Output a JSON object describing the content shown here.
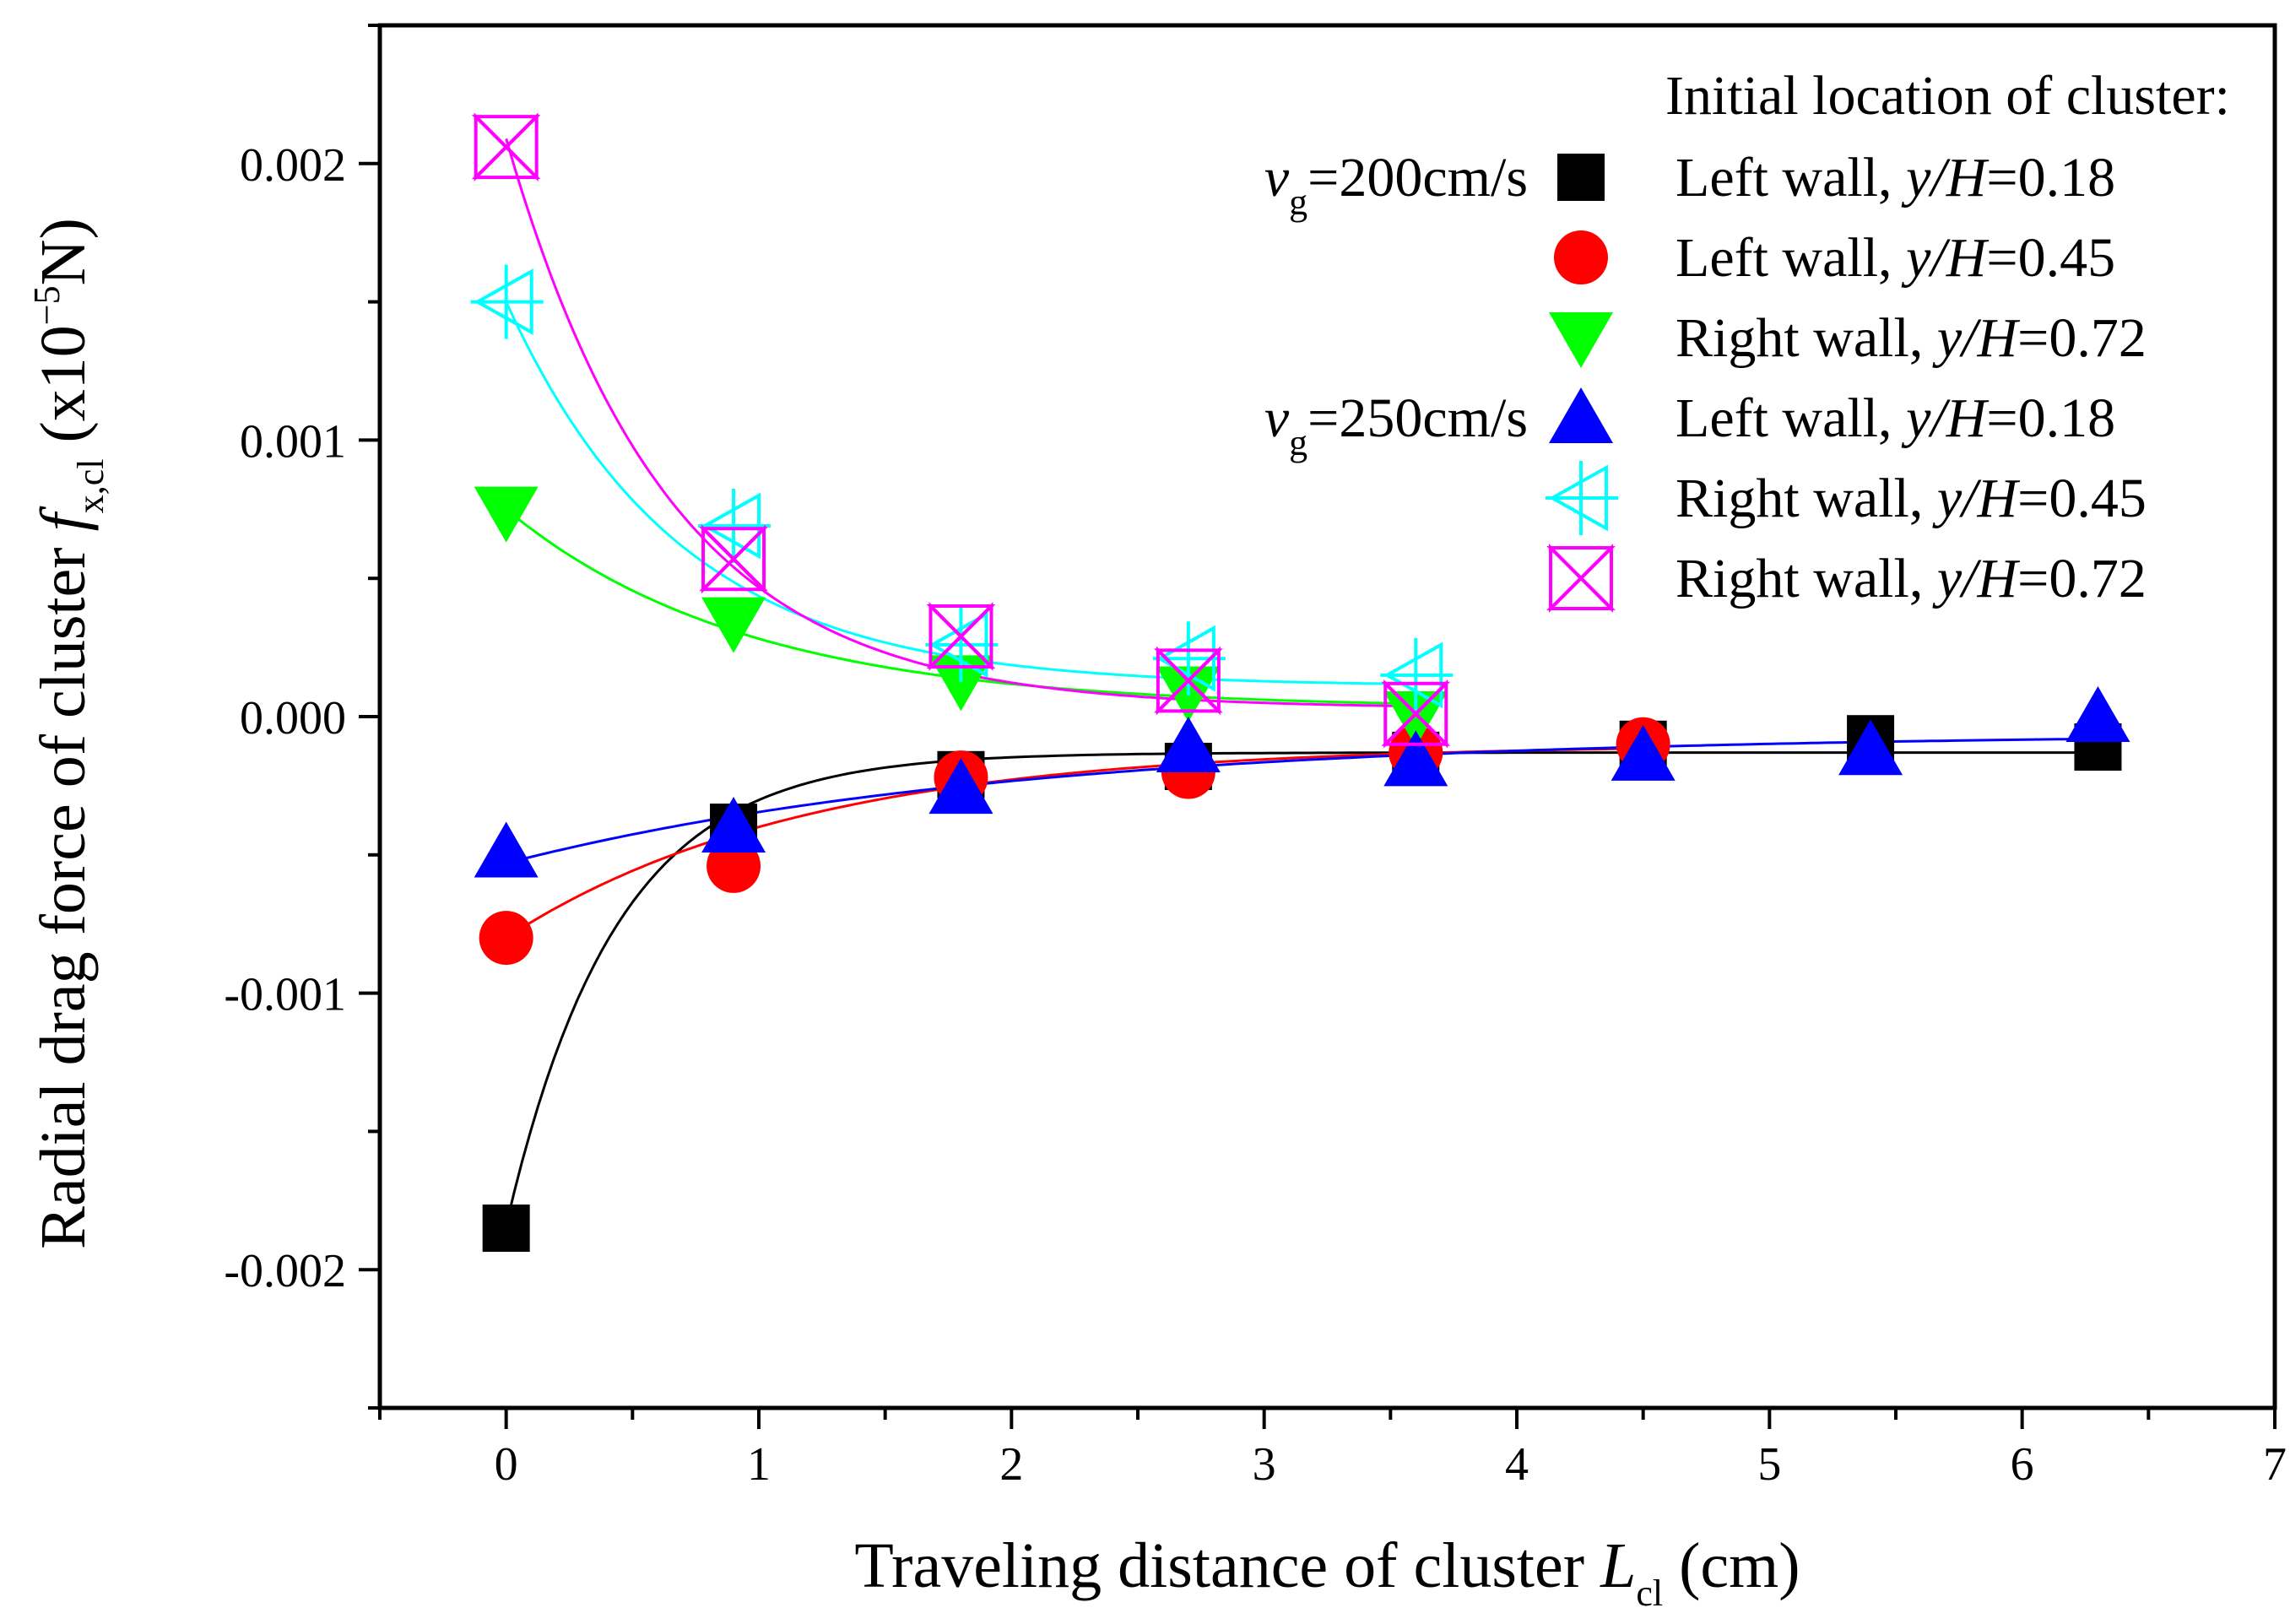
{
  "chart_data": {
    "type": "scatter",
    "xlabel": "Traveling distance of cluster",
    "xlabel_symbol": "L",
    "xlabel_symbol_sub": "cl",
    "xlabel_unit": "(cm)",
    "ylabel": "Radial drag force of cluster",
    "ylabel_symbol": "f",
    "ylabel_symbol_sub": "x,cl",
    "ylabel_unit_open": "(x10",
    "ylabel_unit_exp": "−5",
    "ylabel_unit_close": "N)",
    "xlim": [
      -0.5,
      7
    ],
    "ylim": [
      -0.0025,
      0.0025
    ],
    "xticks": [
      0,
      1,
      2,
      3,
      4,
      5,
      6,
      7
    ],
    "xtick_labels": [
      "0",
      "1",
      "2",
      "3",
      "4",
      "5",
      "6",
      "7"
    ],
    "yticks": [
      -0.002,
      -0.001,
      0.0,
      0.001,
      0.002
    ],
    "ytick_labels": [
      "-0.002",
      "-0.001",
      "0.000",
      "0.001",
      "0.002"
    ],
    "legend": {
      "title": "Initial location of cluster:",
      "placement": "top-right",
      "groups": [
        {
          "symbol": "v",
          "sub": "g",
          "value": "=200cm/s"
        },
        {
          "symbol": "v",
          "sub": "g",
          "value": "=250cm/s"
        }
      ]
    },
    "series": [
      {
        "name_prefix": "Left   wall, ",
        "name_var": "y/H",
        "name_value": "=0.18",
        "group": 0,
        "marker": "square",
        "color": "#000000",
        "x": [
          0,
          0.9,
          1.8,
          2.7,
          3.6,
          4.5,
          5.4,
          6.3
        ],
        "y": [
          -0.00185,
          -0.0004,
          -0.00021,
          -0.00018,
          -0.00014,
          -0.0001,
          -8e-05,
          -0.00011
        ]
      },
      {
        "name_prefix": "Left   wall, ",
        "name_var": "y/H",
        "name_value": "=0.45",
        "group": 0,
        "marker": "circle",
        "color": "#ff0000",
        "x": [
          0,
          0.9,
          1.8,
          2.7,
          3.6,
          4.5
        ],
        "y": [
          -0.0008,
          -0.00054,
          -0.00022,
          -0.0002,
          -0.00013,
          -0.0001
        ]
      },
      {
        "name_prefix": "Right wall, ",
        "name_var": "y/H",
        "name_value": "=0.72",
        "group": 0,
        "marker": "triangle-down",
        "color": "#00ff00",
        "x": [
          0,
          0.9,
          1.8,
          2.7,
          3.6
        ],
        "y": [
          0.00074,
          0.00034,
          0.00013,
          9e-05,
          0.0
        ]
      },
      {
        "name_prefix": "Left   wall, ",
        "name_var": "y/H",
        "name_value": "=0.18",
        "group": 1,
        "marker": "triangle-up",
        "color": "#0000ff",
        "x": [
          0,
          0.9,
          1.8,
          2.7,
          3.6,
          4.5,
          5.4,
          6.3
        ],
        "y": [
          -0.00049,
          -0.0004,
          -0.00026,
          -0.00011,
          -0.00016,
          -0.00014,
          -0.00012,
          0.0
        ]
      },
      {
        "name_prefix": "Right wall, ",
        "name_var": "y/H",
        "name_value": "=0.45",
        "group": 1,
        "marker": "cross-triangle-left",
        "color": "#00ffff",
        "x": [
          0,
          0.9,
          1.8,
          2.7,
          3.6
        ],
        "y": [
          0.0015,
          0.00069,
          0.00026,
          0.00021,
          0.00015
        ]
      },
      {
        "name_prefix": "Right wall, ",
        "name_var": "y/H",
        "name_value": "=0.72",
        "group": 1,
        "marker": "bowtie-x",
        "color": "#ff00ff",
        "x": [
          0,
          0.9,
          1.8,
          2.7,
          3.6
        ],
        "y": [
          0.00206,
          0.00057,
          0.00029,
          0.00013,
          1e-05
        ]
      }
    ],
    "fit_curves": [
      {
        "color": "#000000",
        "a": -0.00171,
        "k": 2.3,
        "c": -0.00013,
        "xrange": [
          0,
          6.3
        ]
      },
      {
        "color": "#ff0000",
        "a": -0.0007,
        "k": 0.85,
        "c": -0.0001,
        "xrange": [
          0,
          4.5
        ]
      },
      {
        "color": "#00ff00",
        "a": 0.00072,
        "k": 1.05,
        "c": 3e-05,
        "xrange": [
          0,
          3.6
        ]
      },
      {
        "color": "#0000ff",
        "a": -0.00047,
        "k": 0.5,
        "c": -6e-05,
        "xrange": [
          0,
          6.3
        ]
      },
      {
        "color": "#00ffff",
        "a": 0.00139,
        "k": 1.45,
        "c": 0.00011,
        "xrange": [
          0,
          3.6
        ]
      },
      {
        "color": "#ff00ff",
        "a": 0.00206,
        "k": 1.55,
        "c": 3e-05,
        "xrange": [
          0,
          3.6
        ]
      }
    ]
  }
}
